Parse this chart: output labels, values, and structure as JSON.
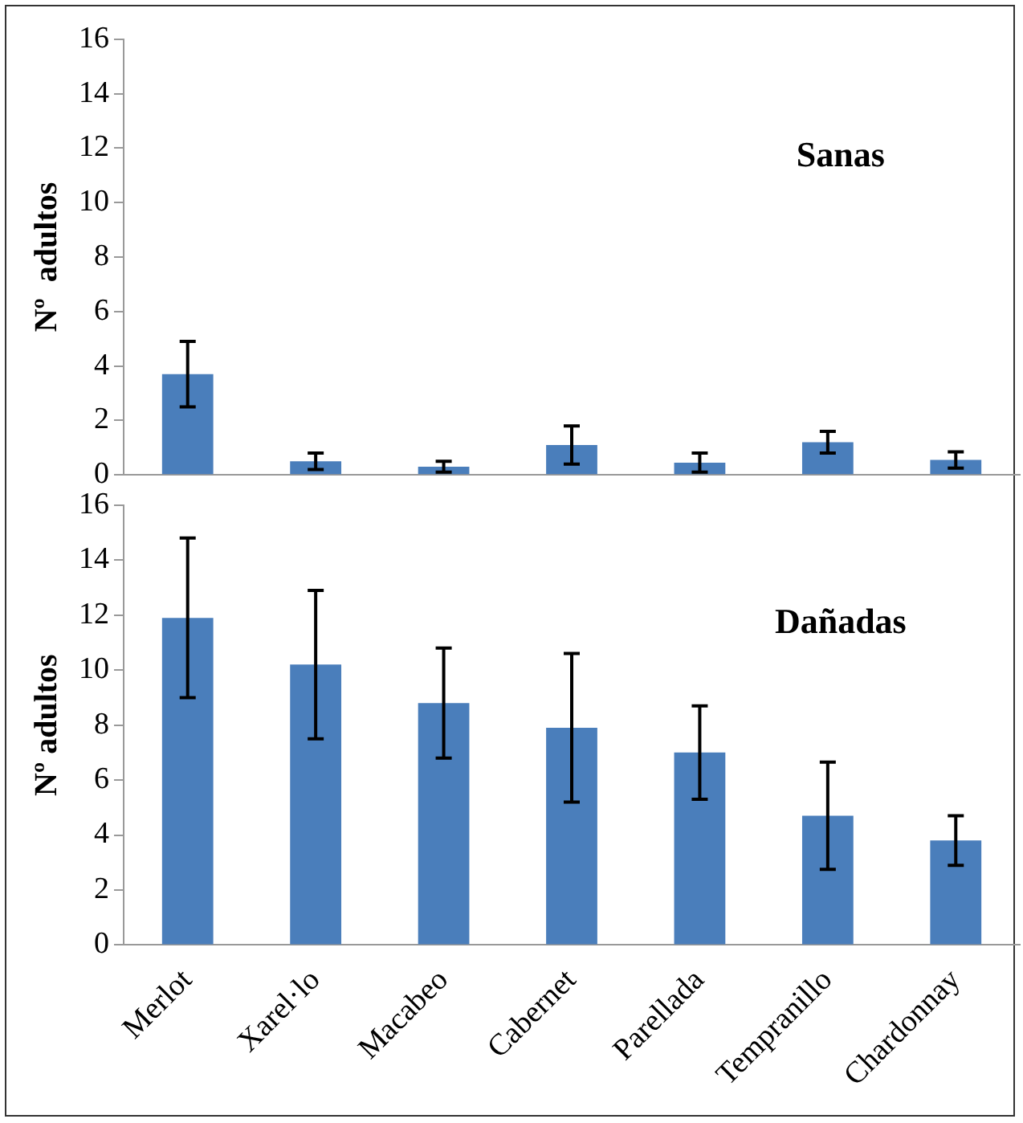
{
  "chart_data": [
    {
      "type": "bar",
      "title": "Sanas",
      "ylabel": "Nº  adultos",
      "categories": [
        null,
        null,
        null,
        null,
        null,
        null,
        null
      ],
      "values": [
        3.7,
        0.5,
        0.3,
        1.1,
        0.45,
        1.2,
        0.55
      ],
      "errors": [
        1.2,
        0.3,
        0.2,
        0.7,
        0.35,
        0.4,
        0.3
      ],
      "color": "#4a7ebb",
      "ylim": [
        0,
        16
      ],
      "yticks": [
        0,
        2,
        4,
        6,
        8,
        10,
        12,
        14,
        16
      ],
      "grid": false,
      "legend": false,
      "tick_labels": "y"
    },
    {
      "type": "bar",
      "title": "Dañadas",
      "ylabel": "Nº adultos",
      "categories": [
        "Merlot",
        "Xarel·lo",
        "Macabeo",
        "Cabernet",
        "Parellada",
        "Tempranillo",
        "Chardonnay"
      ],
      "values": [
        11.9,
        10.2,
        8.8,
        7.9,
        7.0,
        4.7,
        3.8
      ],
      "errors": [
        2.9,
        2.7,
        2.0,
        2.7,
        1.7,
        1.95,
        0.9
      ],
      "color": "#4a7ebb",
      "ylim": [
        0,
        16
      ],
      "yticks": [
        0,
        2,
        4,
        6,
        8,
        10,
        12,
        14,
        16
      ],
      "grid": false,
      "legend": false
    }
  ]
}
